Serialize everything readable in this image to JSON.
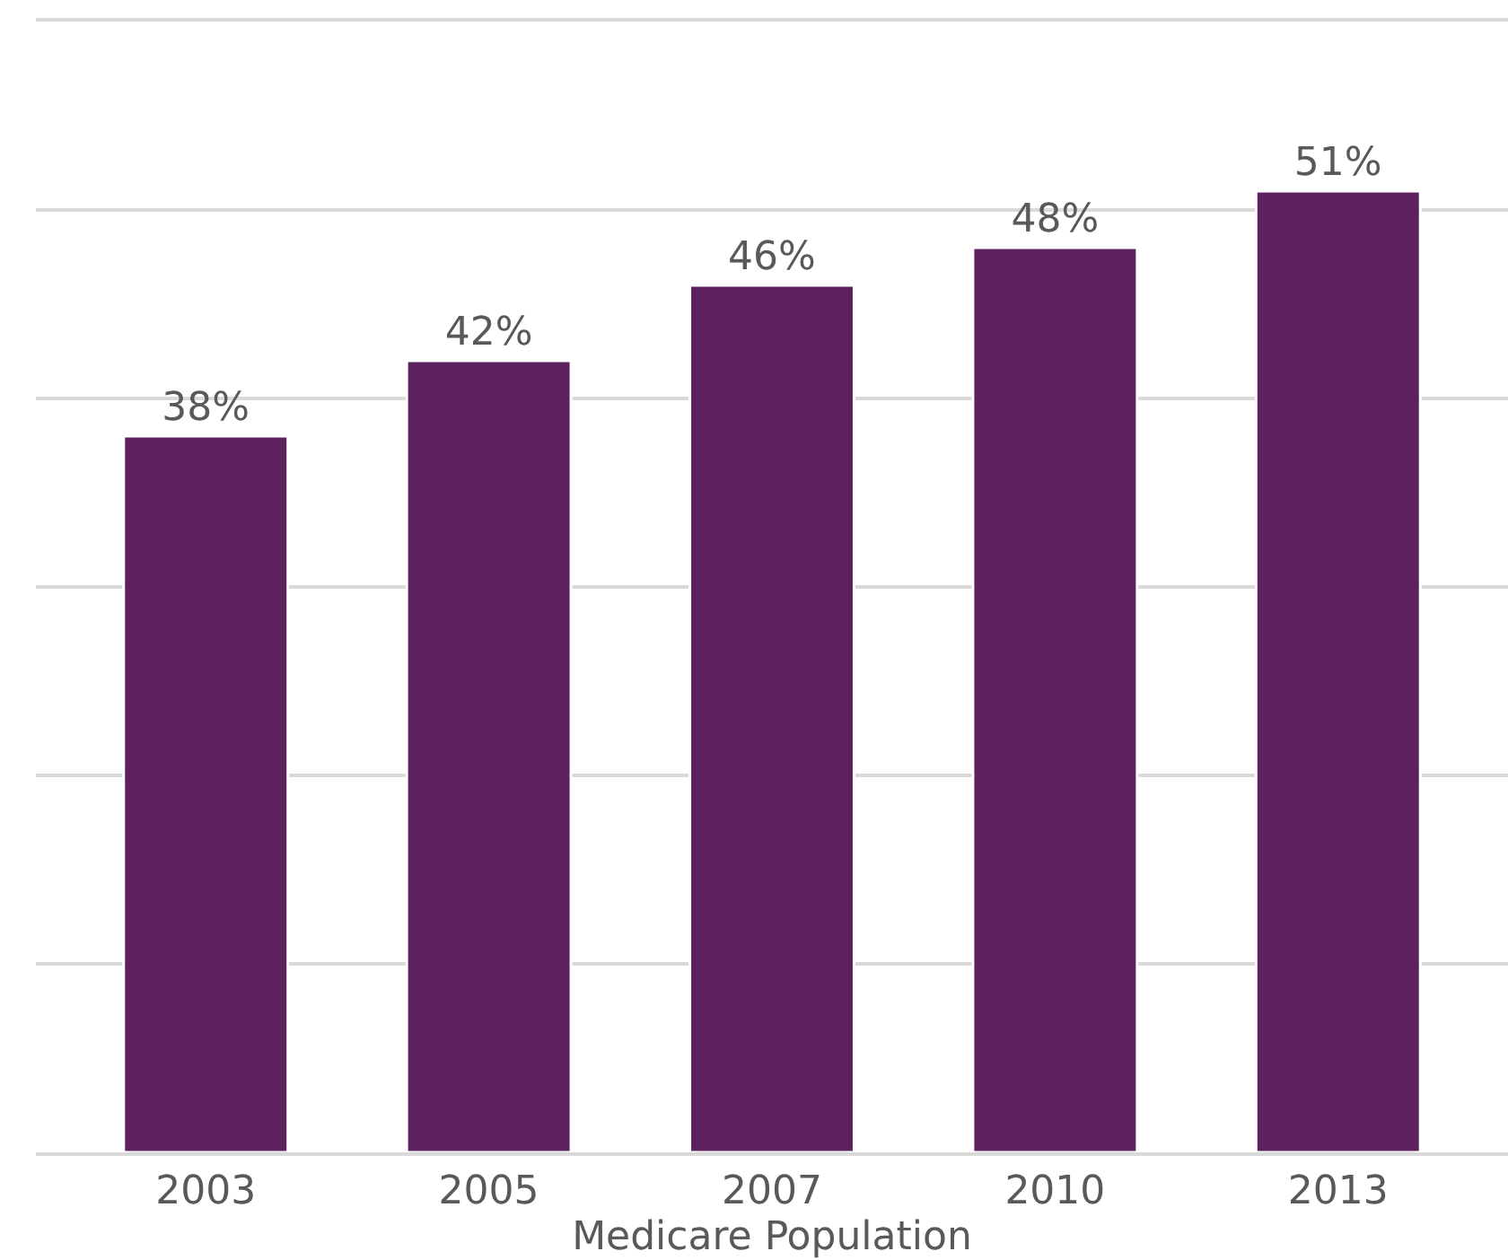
{
  "chart_data": {
    "type": "bar",
    "xlabel": "Medicare Population",
    "categories": [
      "2003",
      "2005",
      "2007",
      "2010",
      "2013"
    ],
    "values": [
      38,
      42,
      46,
      48,
      51
    ],
    "value_labels": [
      "38%",
      "42%",
      "46%",
      "48%",
      "51%"
    ],
    "color": "#5e2160",
    "ylim": [
      0,
      60
    ],
    "yticks": [
      {
        "value": 0,
        "label": null
      },
      {
        "value": 10,
        "label": null
      },
      {
        "value": 20,
        "label": null
      },
      {
        "value": 30,
        "label": null
      },
      {
        "value": 40,
        "label": null
      },
      {
        "value": 50,
        "label": null
      },
      {
        "value": 60,
        "label": null
      }
    ],
    "grid": "y",
    "tick_labels": "x"
  }
}
